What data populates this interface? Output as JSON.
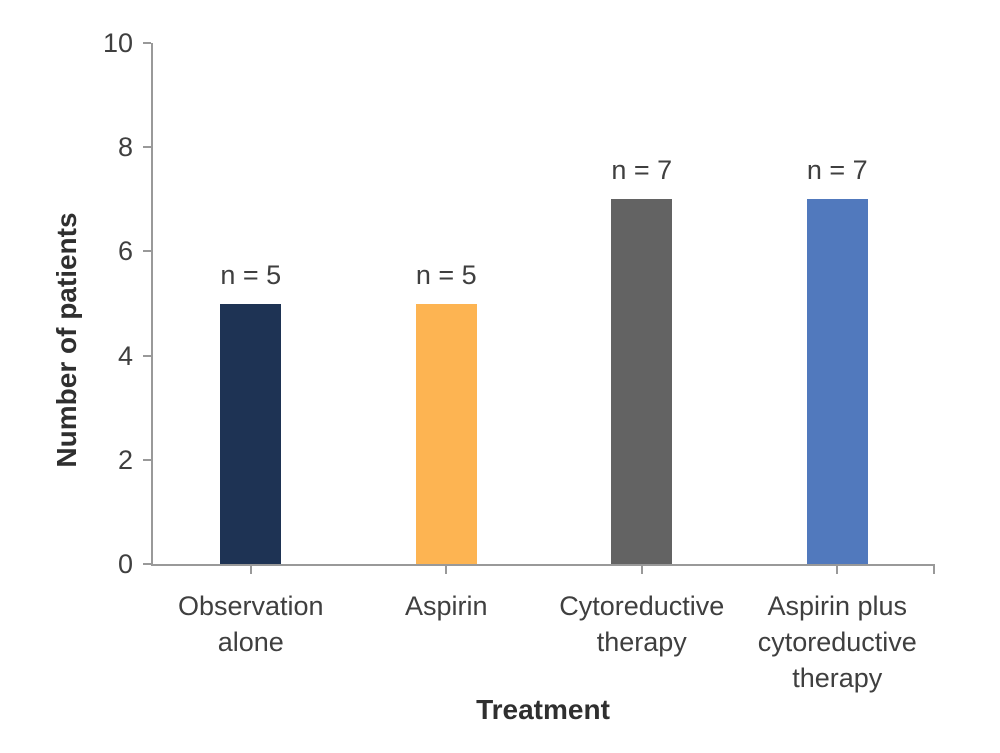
{
  "chart_data": {
    "type": "bar",
    "xlabel": "Treatment",
    "ylabel": "Number of patients",
    "categories": [
      "Observation alone",
      "Aspirin",
      "Cytoreductive therapy",
      "Aspirin plus cytoreductive therapy"
    ],
    "values": [
      5,
      5,
      7,
      7
    ],
    "bar_labels": [
      "n = 5",
      "n = 5",
      "n = 7",
      "n = 7"
    ],
    "bar_colors": [
      "#1e3354",
      "#fdb452",
      "#636363",
      "#5179bd"
    ],
    "ylim": [
      0,
      10
    ],
    "yticks": [
      0,
      2,
      4,
      6,
      8,
      10
    ],
    "grid": false,
    "legend": "none",
    "axis_color": "#999999",
    "text_color": "#3f3f3f"
  }
}
